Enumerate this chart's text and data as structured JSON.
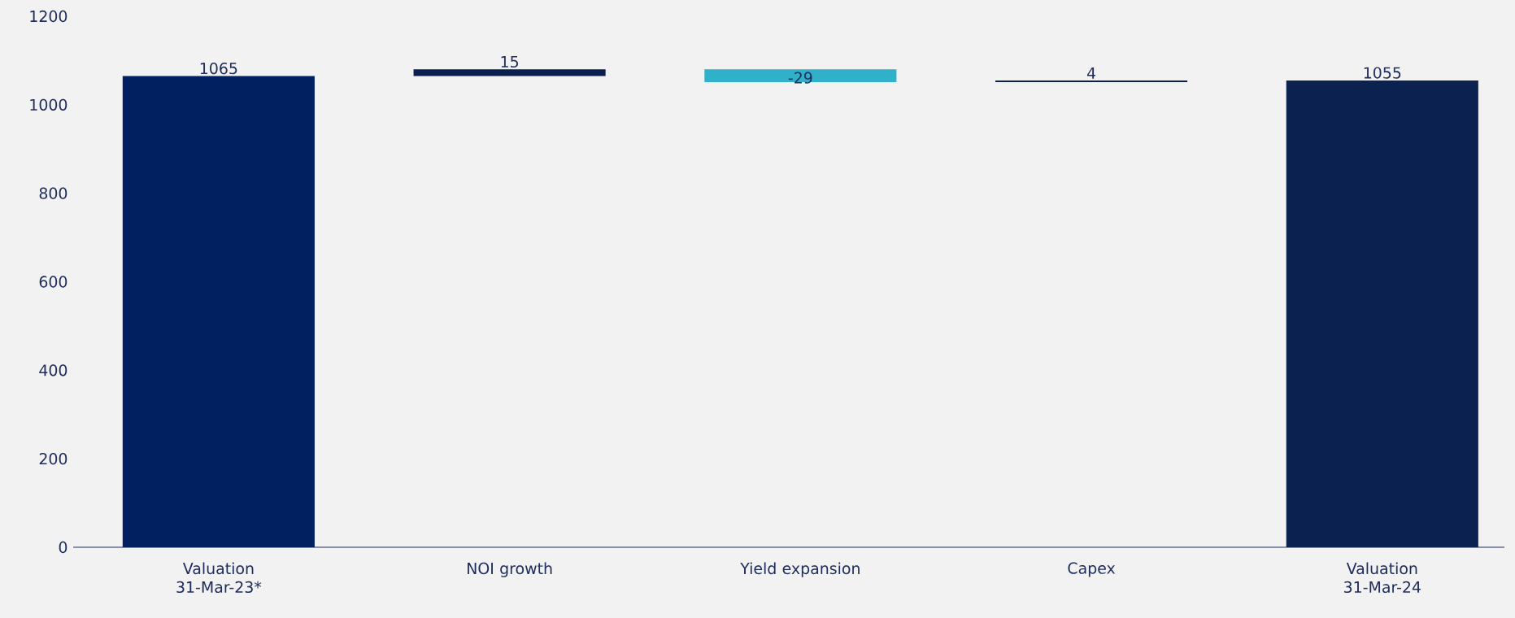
{
  "chart_data": {
    "type": "bar",
    "categories": [
      "Valuation 31-Mar-23*",
      "NOI growth",
      "Yield expansion",
      "Capex",
      "Valuation 31-Mar-24"
    ],
    "values": [
      1065,
      15,
      -29,
      4,
      1055
    ],
    "base": [
      0,
      1065,
      1080,
      1051,
      0
    ],
    "colors": [
      "#002060",
      "#0b1f4f",
      "#31b0c9",
      "#0b1f4f",
      "#0b2150"
    ],
    "ylim": [
      0,
      1200
    ],
    "yticks": [
      0,
      200,
      400,
      600,
      800,
      1000,
      1200
    ],
    "data_labels": true
  }
}
